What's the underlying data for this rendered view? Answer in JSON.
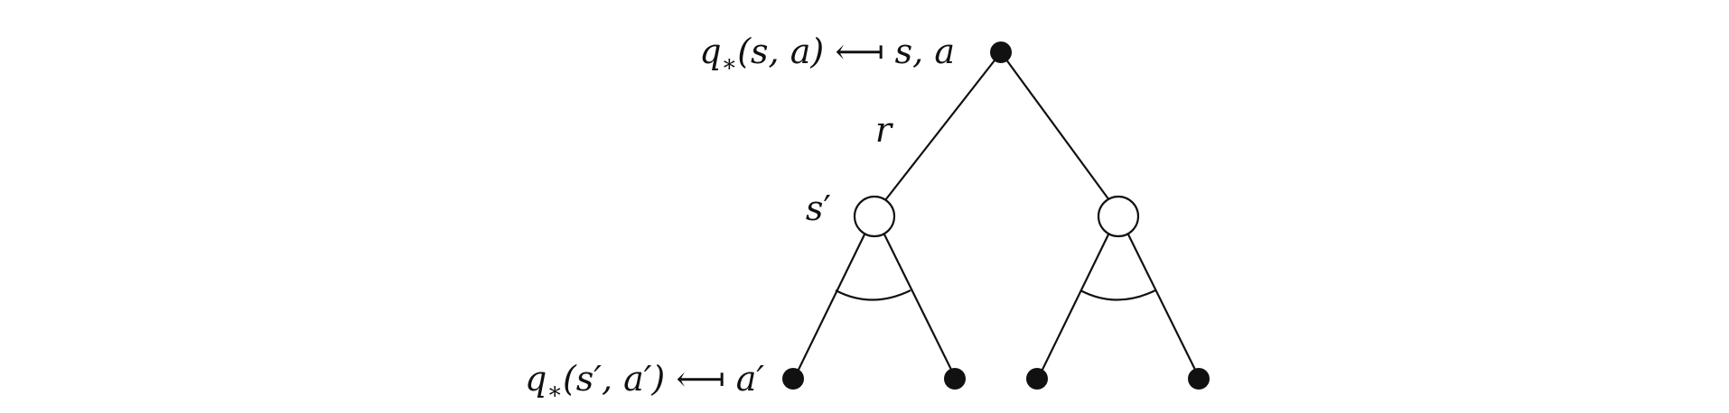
{
  "labels": {
    "top": {
      "q": "q",
      "sub": "∗",
      "args": "(s, a)",
      "arrow": "⟻",
      "rhs": "s, a"
    },
    "reward": "r",
    "next_state": {
      "base": "s",
      "prime": "′"
    },
    "bottom": {
      "q": "q",
      "sub": "∗",
      "args": "(s′, a′)",
      "arrow": "⟻",
      "rhs": "a′"
    }
  },
  "colors": {
    "stroke": "#111111",
    "filled_node": "#111111",
    "open_node": "#ffffff"
  }
}
